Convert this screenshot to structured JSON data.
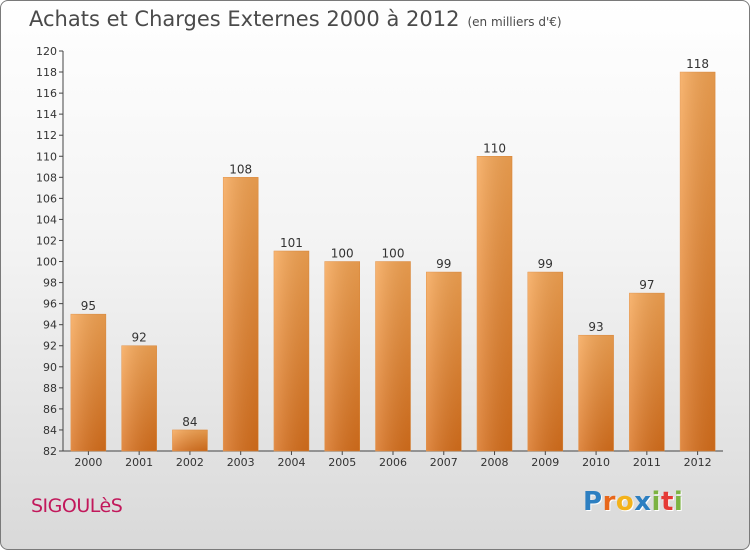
{
  "header": {
    "title": "Achats et Charges Externes 2000 à 2012",
    "unit": "(en milliers d'€)"
  },
  "commune": "SIGOULèS",
  "logo": {
    "letters": [
      "P",
      "r",
      "o",
      "x",
      "i",
      "t",
      "i"
    ],
    "colors": [
      "#2d7fc1",
      "#e8671b",
      "#f3b21b",
      "#2d7fc1",
      "#7cb342",
      "#e53935",
      "#7cb342"
    ]
  },
  "chart_data": {
    "type": "bar",
    "title": "Achats et Charges Externes 2000 à 2012",
    "subtitle": "(en milliers d'€)",
    "categories": [
      "2000",
      "2001",
      "2002",
      "2003",
      "2004",
      "2005",
      "2006",
      "2007",
      "2008",
      "2009",
      "2010",
      "2011",
      "2012"
    ],
    "values": [
      95,
      92,
      84,
      108,
      101,
      100,
      100,
      99,
      110,
      99,
      93,
      97,
      118
    ],
    "ylim": [
      82,
      120
    ],
    "yticks": [
      82,
      84,
      86,
      88,
      90,
      92,
      94,
      96,
      98,
      100,
      102,
      104,
      106,
      108,
      110,
      112,
      114,
      116,
      118,
      120
    ],
    "grid": false,
    "bar_color": "#f0963c"
  }
}
